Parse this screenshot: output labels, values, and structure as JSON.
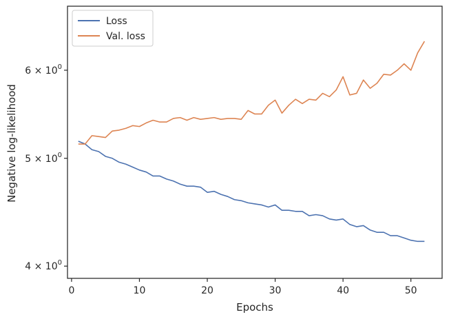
{
  "chart_data": {
    "type": "line",
    "xlabel": "Epochs",
    "ylabel": "Negative log-likelihood",
    "yscale": "log",
    "xlim": [
      -0.6,
      54.6
    ],
    "ylim": [
      3.9,
      6.85
    ],
    "x_ticks": [
      {
        "value": 0,
        "label": "0"
      },
      {
        "value": 10,
        "label": "10"
      },
      {
        "value": 20,
        "label": "20"
      },
      {
        "value": 30,
        "label": "30"
      },
      {
        "value": 40,
        "label": "40"
      },
      {
        "value": 50,
        "label": "50"
      }
    ],
    "y_ticks": [
      {
        "value": 4,
        "base": "4",
        "label_mult": "×",
        "exp_base": "10",
        "exp": "0"
      },
      {
        "value": 5,
        "base": "5",
        "label_mult": "×",
        "exp_base": "10",
        "exp": "0"
      },
      {
        "value": 6,
        "base": "6",
        "label_mult": "×",
        "exp_base": "10",
        "exp": "0"
      }
    ],
    "grid": false,
    "legend_position": "top-left",
    "x": [
      1,
      2,
      3,
      4,
      5,
      6,
      7,
      8,
      9,
      10,
      11,
      12,
      13,
      14,
      15,
      16,
      17,
      18,
      19,
      20,
      21,
      22,
      23,
      24,
      25,
      26,
      27,
      28,
      29,
      30,
      31,
      32,
      33,
      34,
      35,
      36,
      37,
      38,
      39,
      40,
      41,
      42,
      43,
      44,
      45,
      46,
      47,
      48,
      49,
      50,
      51,
      52
    ],
    "series": [
      {
        "name": "Loss",
        "color": "#4c72b0",
        "values": [
          5.18,
          5.15,
          5.09,
          5.07,
          5.02,
          5.0,
          4.96,
          4.94,
          4.91,
          4.88,
          4.86,
          4.82,
          4.82,
          4.79,
          4.77,
          4.74,
          4.72,
          4.72,
          4.71,
          4.66,
          4.67,
          4.64,
          4.62,
          4.59,
          4.58,
          4.56,
          4.55,
          4.54,
          4.52,
          4.54,
          4.49,
          4.49,
          4.48,
          4.48,
          4.44,
          4.45,
          4.44,
          4.41,
          4.4,
          4.41,
          4.36,
          4.34,
          4.35,
          4.31,
          4.29,
          4.29,
          4.26,
          4.26,
          4.24,
          4.22,
          4.21,
          4.21
        ]
      },
      {
        "name": "Val. loss",
        "color": "#dd8452",
        "values": [
          5.15,
          5.15,
          5.24,
          5.23,
          5.22,
          5.29,
          5.3,
          5.32,
          5.35,
          5.34,
          5.38,
          5.41,
          5.39,
          5.39,
          5.43,
          5.44,
          5.41,
          5.44,
          5.42,
          5.43,
          5.44,
          5.42,
          5.43,
          5.43,
          5.42,
          5.52,
          5.48,
          5.48,
          5.58,
          5.64,
          5.49,
          5.58,
          5.65,
          5.6,
          5.65,
          5.64,
          5.72,
          5.68,
          5.76,
          5.92,
          5.7,
          5.72,
          5.88,
          5.78,
          5.84,
          5.95,
          5.94,
          6.0,
          6.08,
          6.0,
          6.22,
          6.37
        ]
      }
    ]
  }
}
